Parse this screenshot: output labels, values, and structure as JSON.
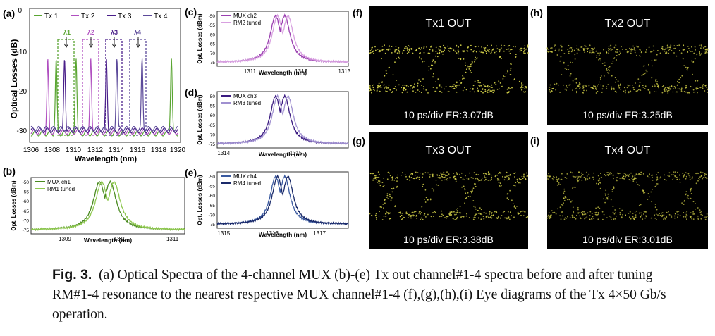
{
  "panels": {
    "a": {
      "label": "(a)",
      "ylabel": "Optical Losses (dB)",
      "xlabel": "Wavelength (nm)",
      "xticks": [
        "1306",
        "1308",
        "1310",
        "1312",
        "1314",
        "1316",
        "1318",
        "1320"
      ],
      "yticks": [
        "0",
        "-10",
        "-20",
        "-30"
      ],
      "legend": [
        "Tx 1",
        "Tx 2",
        "Tx 3",
        "Tx 4"
      ],
      "markers": [
        "λ1",
        "λ2",
        "λ3",
        "λ4"
      ]
    },
    "b": {
      "label": "(b)",
      "ylabel": "Opt. Losses (dBm)",
      "xlabel": "Wavelength (nm)",
      "xticks": [
        "1309",
        "1310",
        "1311"
      ],
      "yticks": [
        "-50",
        "-55",
        "-60",
        "-65",
        "-70",
        "-75"
      ],
      "legend": [
        "MUX ch1",
        "RM1 tuned"
      ]
    },
    "c": {
      "label": "(c)",
      "ylabel": "Opt. Losses (dBm)",
      "xlabel": "Wavelength (nm)",
      "xticks": [
        "1311",
        "1312",
        "1313"
      ],
      "yticks": [
        "-50",
        "-55",
        "-60",
        "-65",
        "-70",
        "-75"
      ],
      "legend": [
        "MUX ch2",
        "RM2 tuned"
      ]
    },
    "d": {
      "label": "(d)",
      "ylabel": "Opt. Losses (dBm)",
      "xlabel": "Wavelength (nm)",
      "xticks": [
        "1314",
        "1315"
      ],
      "yticks": [
        "-50",
        "-55",
        "-60",
        "-65",
        "-70",
        "-75"
      ],
      "legend": [
        "MUX ch3",
        "RM3 tuned"
      ]
    },
    "e": {
      "label": "(e)",
      "ylabel": "Opt. Losses (dBm)",
      "xlabel": "Wavelength (nm)",
      "xticks": [
        "1315",
        "1316",
        "1317"
      ],
      "yticks": [
        "-50",
        "-55",
        "-60",
        "-65",
        "-70",
        "-75"
      ],
      "legend": [
        "MUX ch4",
        "RM4 tuned"
      ]
    }
  },
  "eyes": [
    {
      "label": "(f)",
      "title": "Tx1 OUT",
      "footer": "10 ps/div ER:3.07dB"
    },
    {
      "label": "(h)",
      "title": "Tx2 OUT",
      "footer": "10 ps/div ER:3.25dB"
    },
    {
      "label": "(g)",
      "title": "Tx3 OUT",
      "footer": "10 ps/div ER:3.38dB"
    },
    {
      "label": "(i)",
      "title": "Tx4 OUT",
      "footer": "10 ps/div ER:3.01dB"
    }
  ],
  "caption": {
    "fig": "Fig. 3.",
    "text": "(a) Optical Spectra of the 4-channel MUX (b)-(e) Tx out channel#1-4 spectra before and after tuning RM#1-4 resonance to the nearest respective MUX channel#1-4 (f),(g),(h),(i) Eye diagrams of the Tx 4×50 Gb/s operation."
  },
  "colors": {
    "tx1": "#5aa532",
    "tx2": "#b04fc0",
    "tx3": "#4a1f8a",
    "tx4": "#5c4a9a",
    "eye": "#d8d64a"
  }
}
